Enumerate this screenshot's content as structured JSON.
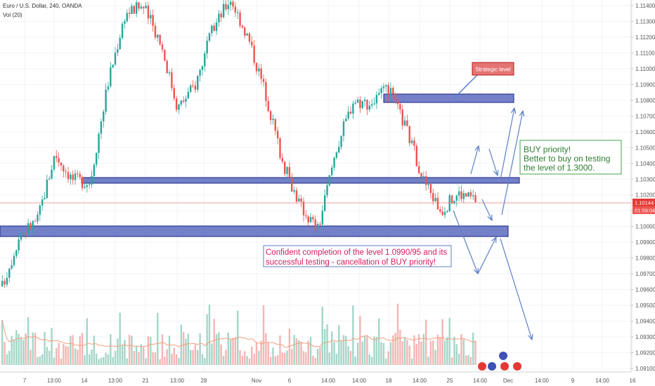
{
  "header": {
    "symbol_line": "Euro / U.S. Dollar, 240, OANDA",
    "volume_line": "Vol (20)"
  },
  "colors": {
    "up": "#26a69a",
    "down": "#ef5350",
    "zone_fill": "#5c6bc0",
    "zone_stroke": "#1a237e",
    "arrow": "#5b7fc7",
    "buy_text": "#2e7d32",
    "warn_text": "#d81b60",
    "price_line": "#e57373",
    "price_tag": "#e53935"
  },
  "price_tag": {
    "price": "1.10144",
    "countdown": "01:59:04"
  },
  "annotations": {
    "strategic": "Strategic level",
    "buy_line1": "BUY priority!",
    "buy_line2": "Better to buy on testing",
    "buy_line3": "the level of 1.3000.",
    "warn_line1": "Confident completion of the level 1.0990/95 and its",
    "warn_line2": "successful testing - cancellation of BUY priority!"
  },
  "chart_data": {
    "type": "candlestick",
    "title": "Euro / U.S. Dollar, 240, OANDA",
    "ylim": [
      1.0905,
      1.1145
    ],
    "y_ticks": [
      "1.11400",
      "1.11300",
      "1.11200",
      "1.11100",
      "1.11000",
      "1.10900",
      "1.10800",
      "1.10700",
      "1.10600",
      "1.10500",
      "1.10400",
      "1.10300",
      "1.10200",
      "1.10100",
      "1.10000",
      "1.09900",
      "1.09800",
      "1.09700",
      "1.09600",
      "1.09500",
      "1.09400",
      "1.09300",
      "1.09200",
      "1.09100"
    ],
    "x_ticks": [
      "7",
      "13:00",
      "14",
      "13:00",
      "21",
      "13:00",
      "28",
      "Nov",
      "6",
      "14:00",
      "14:00",
      "18",
      "14:00",
      "25",
      "14:00",
      "Dec",
      "14:00",
      "9",
      "14:00",
      "16"
    ],
    "last_price": 1.10144,
    "zones": [
      {
        "name": "strategic",
        "low": 1.1081,
        "high": 1.1086
      },
      {
        "name": "mid",
        "low": 1.1027,
        "high": 1.1031
      },
      {
        "name": "support",
        "low": 1.0994,
        "high": 1.1001
      }
    ],
    "path_points": [
      [
        1.0962,
        1.0952
      ],
      [
        1.0995,
        1.0993
      ],
      [
        1.1004,
        1.1008
      ],
      [
        1.1046,
        1.105
      ],
      [
        1.103,
        1.1027
      ],
      [
        1.1028,
        1.1031
      ],
      [
        1.109,
        1.1096
      ],
      [
        1.1135,
        1.114
      ],
      [
        1.114,
        1.113
      ],
      [
        1.1118,
        1.1122
      ],
      [
        1.1075,
        1.1082
      ],
      [
        1.109,
        1.11
      ],
      [
        1.1125,
        1.1135
      ],
      [
        1.1145,
        1.114
      ],
      [
        1.112,
        1.1118
      ],
      [
        1.1085,
        1.107
      ],
      [
        1.104,
        1.1026
      ],
      [
        1.1013,
        1.1008
      ],
      [
        1.0998,
        1.1004
      ],
      [
        1.1048,
        1.1059
      ],
      [
        1.108,
        1.1084
      ],
      [
        1.1078,
        1.1074
      ],
      [
        1.1087,
        1.1081
      ],
      [
        1.1063,
        1.1044
      ],
      [
        1.103,
        1.1016
      ],
      [
        1.101,
        1.1013
      ],
      [
        1.1021,
        1.1022
      ],
      [
        1.1017,
        1.1014
      ]
    ],
    "volume_peak": 1
  }
}
